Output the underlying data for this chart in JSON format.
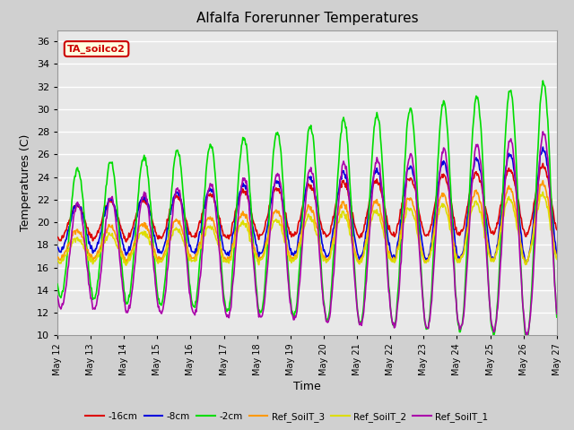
{
  "title": "Alfalfa Forerunner Temperatures",
  "xlabel": "Time",
  "ylabel": "Temperatures (C)",
  "ylim": [
    10,
    37
  ],
  "yticks": [
    10,
    12,
    14,
    16,
    18,
    20,
    22,
    24,
    26,
    28,
    30,
    32,
    34,
    36
  ],
  "x_start_day": 12,
  "x_end_day": 27,
  "xtick_days": [
    12,
    13,
    14,
    15,
    16,
    17,
    18,
    19,
    20,
    21,
    22,
    23,
    24,
    25,
    26,
    27
  ],
  "annotation_text": "TA_soilco2",
  "fig_bg_color": "#d0d0d0",
  "plot_bg_color": "#e8e8e8",
  "grid_color": "#ffffff",
  "colors": {
    "-16cm": "#dd0000",
    "-8cm": "#0000dd",
    "-2cm": "#00dd00",
    "Ref_SoilT_3": "#ff9900",
    "Ref_SoilT_2": "#dddd00",
    "Ref_SoilT_1": "#aa00aa"
  },
  "legend_labels": [
    "-16cm",
    "-8cm",
    "-2cm",
    "Ref_SoilT_3",
    "Ref_SoilT_2",
    "Ref_SoilT_1"
  ]
}
